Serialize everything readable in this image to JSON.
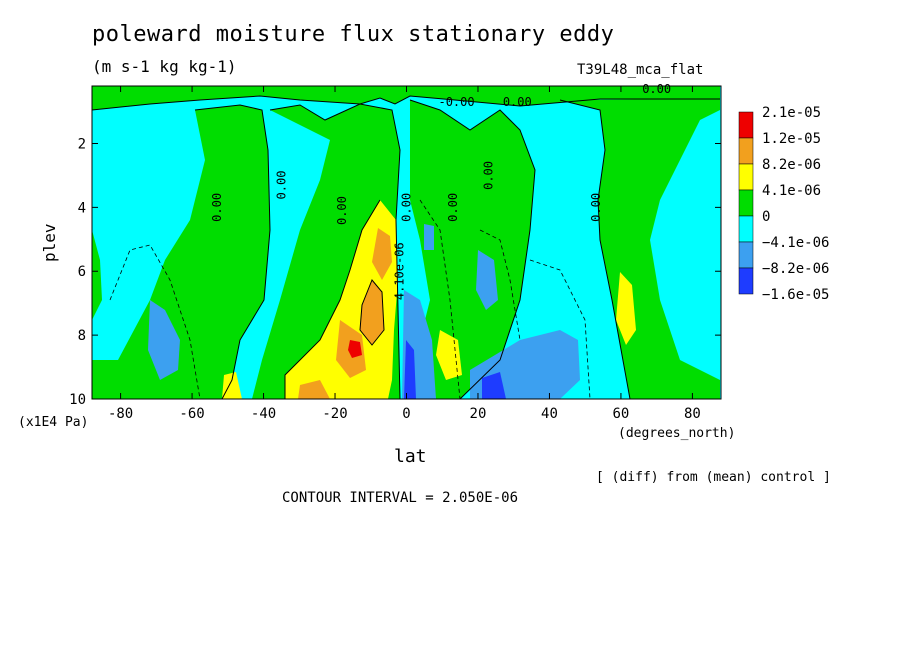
{
  "figure": {
    "title": "poleward moisture flux stationary eddy",
    "units": "(m s-1 kg kg-1)",
    "run_name": "T39L48_mca_flat",
    "ylabel": "plev",
    "y_power_label": "(x1E4 Pa)",
    "xlabel": "lat",
    "x_units": "(degrees_north)",
    "diff_note": "[ (diff) from (mean) control ]",
    "contour_interval_text": "CONTOUR INTERVAL = 2.050E-06"
  },
  "chart_data": {
    "type": "heatmap",
    "title": "poleward moisture flux stationary eddy",
    "xlabel": "lat",
    "ylabel": "plev",
    "x_ticks": [
      "-80",
      "-60",
      "-40",
      "-20",
      "0",
      "20",
      "40",
      "60",
      "80"
    ],
    "x_tick_values": [
      -80,
      -60,
      -40,
      -20,
      0,
      20,
      40,
      60,
      80
    ],
    "y_ticks": [
      "2",
      "4",
      "6",
      "8",
      "10"
    ],
    "y_tick_values": [
      2,
      4,
      6,
      8,
      10
    ],
    "xlim": [
      -88,
      88
    ],
    "ylim": [
      0.2,
      10
    ],
    "y_inverted": true,
    "contour_interval": 2.05e-06,
    "legend_position": "right",
    "legend": [
      {
        "label": "2.1e-05",
        "color": "#ee0000"
      },
      {
        "label": "1.2e-05",
        "color": "#f2a01e"
      },
      {
        "label": "8.2e-06",
        "color": "#ffff00"
      },
      {
        "label": "4.1e-06",
        "color": "#00dd00"
      },
      {
        "label": "0",
        "color": "#00dd00"
      },
      {
        "label": "−4.1e-06",
        "color": "#00ffff"
      },
      {
        "label": "−8.2e-06",
        "color": "#3ca0f0"
      },
      {
        "label": "−1.6e-05",
        "color": "#1e3cff"
      }
    ],
    "legend_colors": [
      "#ee0000",
      "#f2a01e",
      "#ffff00",
      "#00dd00",
      "#00ffff",
      "#3ca0f0",
      "#1e3cff"
    ],
    "contour_labels": [
      {
        "text": "0.00",
        "lat": -53,
        "plev": 4.0
      },
      {
        "text": "0.00",
        "lat": -35,
        "plev": 3.3
      },
      {
        "text": "0.00",
        "lat": -18,
        "plev": 4.1
      },
      {
        "text": "0.00",
        "lat": 0,
        "plev": 4.0
      },
      {
        "text": "0.00",
        "lat": 13,
        "plev": 4.0
      },
      {
        "text": "0.00",
        "lat": 23,
        "plev": 3.0
      },
      {
        "text": "0.00",
        "lat": 53,
        "plev": 4.0
      },
      {
        "text": "-0.00",
        "lat": 14,
        "plev": 0.7
      },
      {
        "text": "0.00",
        "lat": 31,
        "plev": 0.7
      },
      {
        "text": "0.00",
        "lat": 70,
        "plev": 0.3
      },
      {
        "text": "4.10e-06",
        "lat": -2,
        "plev": 6.0
      }
    ]
  }
}
